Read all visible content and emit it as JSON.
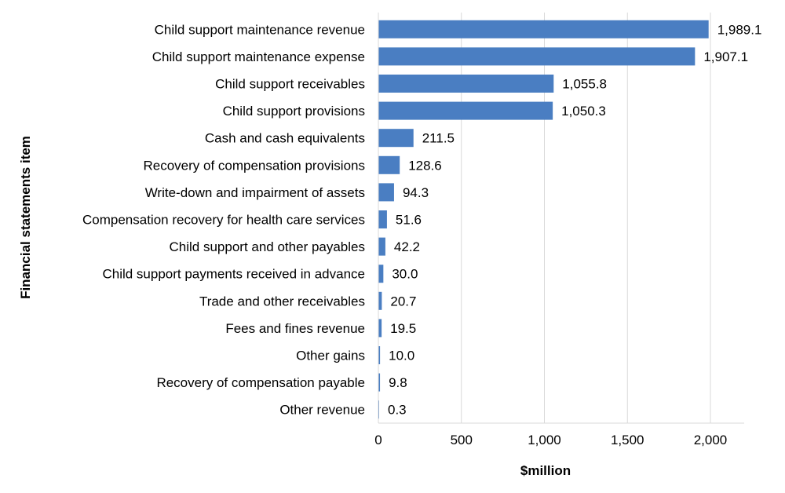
{
  "chart_data": {
    "type": "bar",
    "orientation": "horizontal",
    "title": "",
    "xlabel": "$million",
    "ylabel": "Financial statements item",
    "xlim": [
      0,
      2200
    ],
    "x_ticks": [
      0,
      500,
      1000,
      1500,
      2000
    ],
    "x_tick_labels": [
      "0",
      "500",
      "1,000",
      "1,500",
      "2,000"
    ],
    "grid": "vertical",
    "bar_color": "#4A7EC2",
    "gridline_color": "#D9D9D9",
    "categories": [
      "Child support maintenance revenue",
      "Child support maintenance expense",
      "Child support receivables",
      "Child support provisions",
      "Cash and cash equivalents",
      "Recovery of compensation provisions",
      "Write-down and impairment of assets",
      "Compensation recovery for health care services",
      "Child support and other payables",
      "Child support payments received in advance",
      "Trade and other receivables",
      "Fees and fines revenue",
      "Other gains",
      "Recovery of compensation payable",
      "Other revenue"
    ],
    "values": [
      1989.1,
      1907.1,
      1055.8,
      1050.3,
      211.5,
      128.6,
      94.3,
      51.6,
      42.2,
      30.0,
      20.7,
      19.5,
      10.0,
      9.8,
      0.3
    ],
    "value_labels": [
      "1,989.1",
      "1,907.1",
      "1,055.8",
      "1,050.3",
      "211.5",
      "128.6",
      "94.3",
      "51.6",
      "42.2",
      "30.0",
      "20.7",
      "19.5",
      "10.0",
      "9.8",
      "0.3"
    ]
  }
}
